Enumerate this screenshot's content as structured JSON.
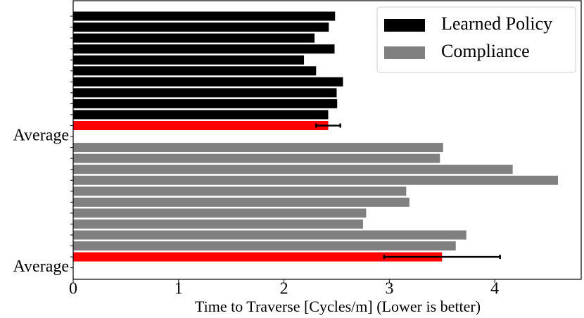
{
  "chart_data": {
    "type": "barh",
    "xlabel": "Time to Traverse [Cycles/m] (Lower is better)",
    "categories": [
      null,
      null,
      null,
      null,
      null,
      null,
      null,
      null,
      null,
      null,
      null,
      "Average",
      null,
      null,
      null,
      null,
      null,
      null,
      null,
      null,
      null,
      null,
      null,
      "Average"
    ],
    "series": [
      {
        "name": "Learned Policy",
        "color": "#000000",
        "values": [
          2.485,
          2.425,
          2.29,
          2.48,
          2.19,
          2.305,
          2.56,
          2.5,
          2.505,
          2.42,
          null,
          null,
          null,
          null,
          null,
          null,
          null,
          null,
          null,
          null,
          null,
          null,
          null,
          null
        ]
      },
      {
        "name": "Compliance",
        "color": "#808080",
        "values": [
          null,
          null,
          null,
          null,
          null,
          null,
          null,
          null,
          null,
          null,
          null,
          null,
          3.51,
          3.48,
          4.17,
          4.6,
          3.16,
          3.19,
          2.78,
          2.75,
          3.73,
          3.63,
          null,
          null
        ]
      }
    ],
    "averages": {
      "color": "#ff0000",
      "values": [
        null,
        null,
        null,
        null,
        null,
        null,
        null,
        null,
        null,
        null,
        2.42,
        null,
        null,
        null,
        null,
        null,
        null,
        null,
        null,
        null,
        null,
        null,
        3.5,
        null
      ],
      "errors": [
        null,
        null,
        null,
        null,
        null,
        null,
        null,
        null,
        null,
        null,
        0.115,
        null,
        null,
        null,
        null,
        null,
        null,
        null,
        null,
        null,
        null,
        null,
        0.55,
        null
      ]
    },
    "xlim": [
      0,
      4.82
    ],
    "xticks": [
      0,
      1,
      2,
      3,
      4
    ],
    "legend": "upper right"
  }
}
